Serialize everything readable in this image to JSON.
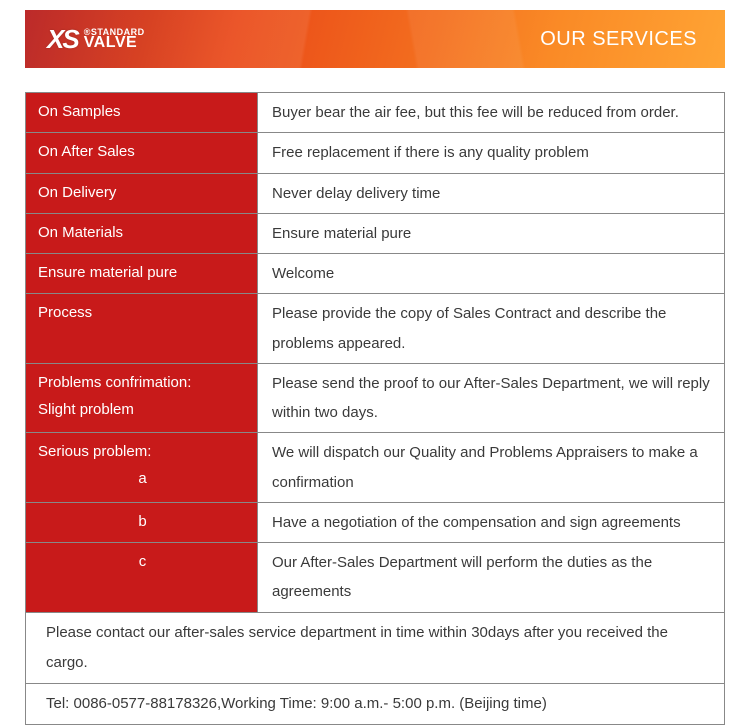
{
  "header": {
    "logo_xs": "XS",
    "logo_standard": "STANDARD",
    "logo_valve": "VALVE",
    "logo_reg": "®",
    "title": "OUR SERVICES",
    "gradient_colors": [
      "#b61818",
      "#d43210",
      "#e94818",
      "#f26a1e",
      "#fa8a26",
      "#ffa434"
    ]
  },
  "table": {
    "label_bg": "#c81a1a",
    "label_color": "#ffffff",
    "value_bg": "#ffffff",
    "value_color": "#3a3a3a",
    "border_color": "#888888",
    "font_size": 15,
    "rows": [
      {
        "label": "On Samples",
        "value": "Buyer bear the air fee, but this fee will be reduced from order."
      },
      {
        "label": "On After Sales",
        "value": "Free replacement if there is any quality problem"
      },
      {
        "label": "On Delivery",
        "value": "Never delay delivery time"
      },
      {
        "label": "On Materials",
        "value": "Ensure material pure"
      },
      {
        "label": "Ensure material pure",
        "value": "Welcome"
      },
      {
        "label": "Process",
        "value": "Please provide the copy of Sales Contract and describe the problems appeared."
      },
      {
        "label_line1": "Problems confrimation:",
        "label_line2": "Slight problem",
        "value": "Please send the proof to our After-Sales Department, we will reply within two days."
      },
      {
        "label_line1": "Serious problem:",
        "sub": "a",
        "value": "We will dispatch our Quality and Problems Appraisers to make a confirmation"
      },
      {
        "sub": "b",
        "value": "Have a negotiation of the compensation and sign agreements"
      },
      {
        "sub": "c",
        "value": "Our After-Sales Department will perform the duties as the agreements"
      }
    ],
    "footer1": "Please contact our after-sales service department in time within 30days after you received the cargo.",
    "footer2": "Tel: 0086-0577-88178326,Working Time: 9:00 a.m.- 5:00 p.m. (Beijing time)"
  }
}
